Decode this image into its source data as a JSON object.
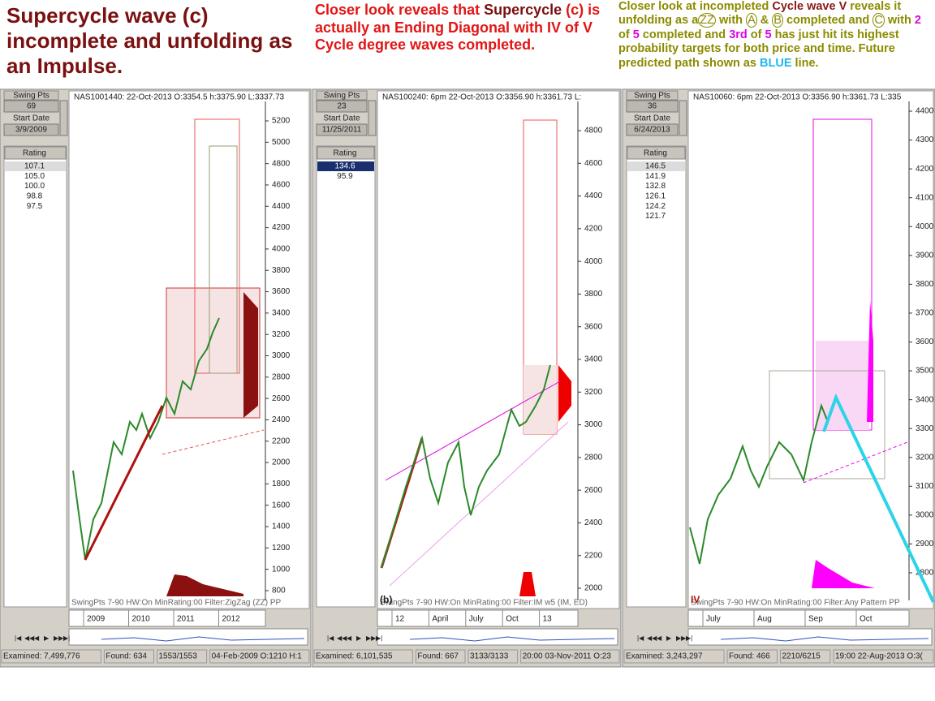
{
  "header": {
    "left": "Supercycle wave (c) incomplete and unfolding as an Impulse.",
    "middle": [
      "Closer look reveals that ",
      "Supercycle",
      " (c) is actually an Ending Diagonal with IV of V Cycle degree waves completed."
    ],
    "right": [
      "Closer look at incompleted ",
      "Cycle wave V",
      " reveals it unfolding as a",
      "ZZ",
      " with ",
      "A",
      " & ",
      "B",
      " completed and ",
      "C",
      " with ",
      "2",
      " of ",
      "5",
      " completed and ",
      "3rd",
      " of ",
      "5",
      " has just hit its highest probability targets for both price and time.  Future predicted path shown as ",
      "BLUE",
      " line."
    ]
  },
  "panels": [
    {
      "symbol_info": "NAS1001440: 22-Oct-2013 O:3354.5 h:3375.90 L:3337.73",
      "swing_label": "Swing Pts",
      "swing_value": "69",
      "start_label": "Start Date",
      "start_date": "3/9/2009",
      "rating_label": "Rating",
      "ratings": [
        "107.1",
        "105.0",
        "100.0",
        "98.8",
        "97.5"
      ],
      "y_axis": [
        5200,
        5000,
        4800,
        4600,
        4400,
        4200,
        4000,
        3800,
        3600,
        3400,
        3200,
        3000,
        2800,
        2600,
        2400,
        2200,
        2000,
        1800,
        1600,
        1400,
        1200,
        1000,
        800
      ],
      "footer": "SwingPts 7-90 HW:On MinRating:00 Filter:ZigZag (ZZ) PP",
      "time_labels": [
        "2009",
        "2010",
        "2011",
        "2012"
      ],
      "status": [
        "Examined: 7,499,776",
        "Found: 634",
        "1553/1553",
        "04-Feb-2009 O:1210 H:1"
      ]
    },
    {
      "symbol_info": "NAS100240: 6pm 22-Oct-2013 O:3356.90 h:3361.73 L:",
      "swing_label": "Swing Pts",
      "swing_value": "23",
      "start_label": "Start Date",
      "start_date": "11/25/2011",
      "rating_label": "Rating",
      "ratings": [
        "134.6",
        "95.9"
      ],
      "y_axis": [
        4800,
        4600,
        4400,
        4200,
        4000,
        3800,
        3600,
        3400,
        3200,
        3000,
        2800,
        2600,
        2400,
        2200,
        2000
      ],
      "corner_label": "(b)",
      "footer": "SwingPts 7-90 HW:On MinRating:00 Filter:IM w5 (IM, ED)",
      "time_labels": [
        "12",
        "April",
        "July",
        "Oct",
        "13"
      ],
      "status": [
        "Examined: 6,101,535",
        "Found: 667",
        "3133/3133",
        "20:00 03-Nov-2011 O:23"
      ]
    },
    {
      "symbol_info": "NAS10060: 6pm 22-Oct-2013 O:3356.90 h:3361.73 L:335",
      "swing_label": "Swing Pts",
      "swing_value": "36",
      "start_label": "Start Date",
      "start_date": "6/24/2013",
      "rating_label": "Rating",
      "ratings": [
        "146.5",
        "141.9",
        "132.8",
        "126.1",
        "124.2",
        "121.7"
      ],
      "y_axis": [
        4400,
        4300,
        4200,
        4100,
        4000,
        3900,
        3800,
        3700,
        3600,
        3500,
        3400,
        3300,
        3200,
        3100,
        3000,
        2900,
        2800
      ],
      "corner_label": "IV",
      "footer": "SwingPts 7-90 HW:On MinRating:00 Filter:Any Pattern PP",
      "time_labels": [
        "July",
        "Aug",
        "Sep",
        "Oct"
      ],
      "status": [
        "Examined: 3,243,297",
        "Found: 466",
        "2210/6215",
        "19:00 22-Aug-2013 O:3("
      ]
    }
  ]
}
